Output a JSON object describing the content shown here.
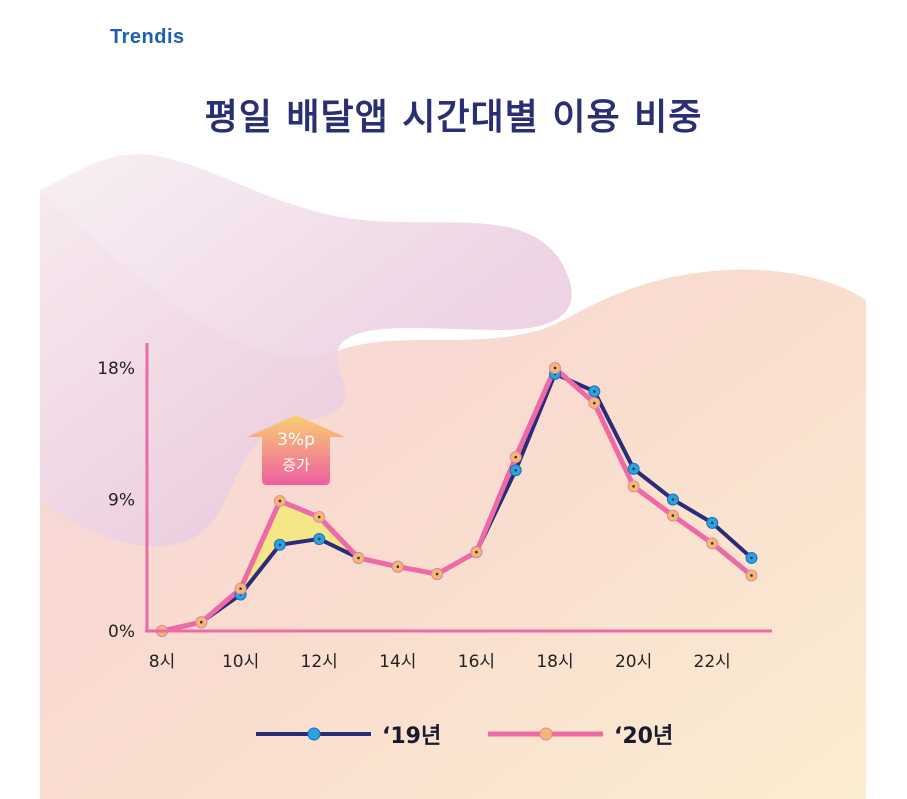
{
  "logo": "Trendis",
  "title": "평일 배달앱 시간대별 이용 비중",
  "callout": {
    "line1": "3%p",
    "line2": "증가"
  },
  "colors": {
    "series_2019": "#2a2c78",
    "series_2020": "#ee6aa7",
    "axis": "#ee6aa7",
    "highlight": "#f5e77a",
    "title": "#2a2f74"
  },
  "chart_data": {
    "type": "line",
    "title": "평일 배달앱 시간대별 이용 비중",
    "x": [
      8,
      9,
      10,
      11,
      12,
      13,
      14,
      15,
      16,
      17,
      18,
      19,
      20,
      21,
      22,
      23
    ],
    "x_tick_labels": [
      {
        "x": 8,
        "label": "8시"
      },
      {
        "x": 10,
        "label": "10시"
      },
      {
        "x": 12,
        "label": "12시"
      },
      {
        "x": 14,
        "label": "14시"
      },
      {
        "x": 16,
        "label": "16시"
      },
      {
        "x": 18,
        "label": "18시"
      },
      {
        "x": 20,
        "label": "20시"
      },
      {
        "x": 22,
        "label": "22시"
      }
    ],
    "y_tick_labels": [
      {
        "y": 0,
        "label": "0%"
      },
      {
        "y": 9,
        "label": "9%"
      },
      {
        "y": 18,
        "label": "18%"
      }
    ],
    "ylim": [
      0,
      18
    ],
    "grid": false,
    "legend": "bottom",
    "series": [
      {
        "name": "‘19년",
        "values": [
          0,
          0.6,
          2.5,
          5.9,
          6.3,
          5.0,
          4.4,
          3.9,
          5.4,
          11.0,
          17.6,
          16.4,
          11.1,
          9.0,
          7.4,
          5.0
        ]
      },
      {
        "name": "‘20년",
        "values": [
          0,
          0.6,
          2.9,
          8.9,
          7.8,
          5.0,
          4.4,
          3.9,
          5.4,
          11.9,
          18.0,
          15.6,
          9.9,
          7.9,
          6.0,
          3.8
        ]
      }
    ]
  }
}
